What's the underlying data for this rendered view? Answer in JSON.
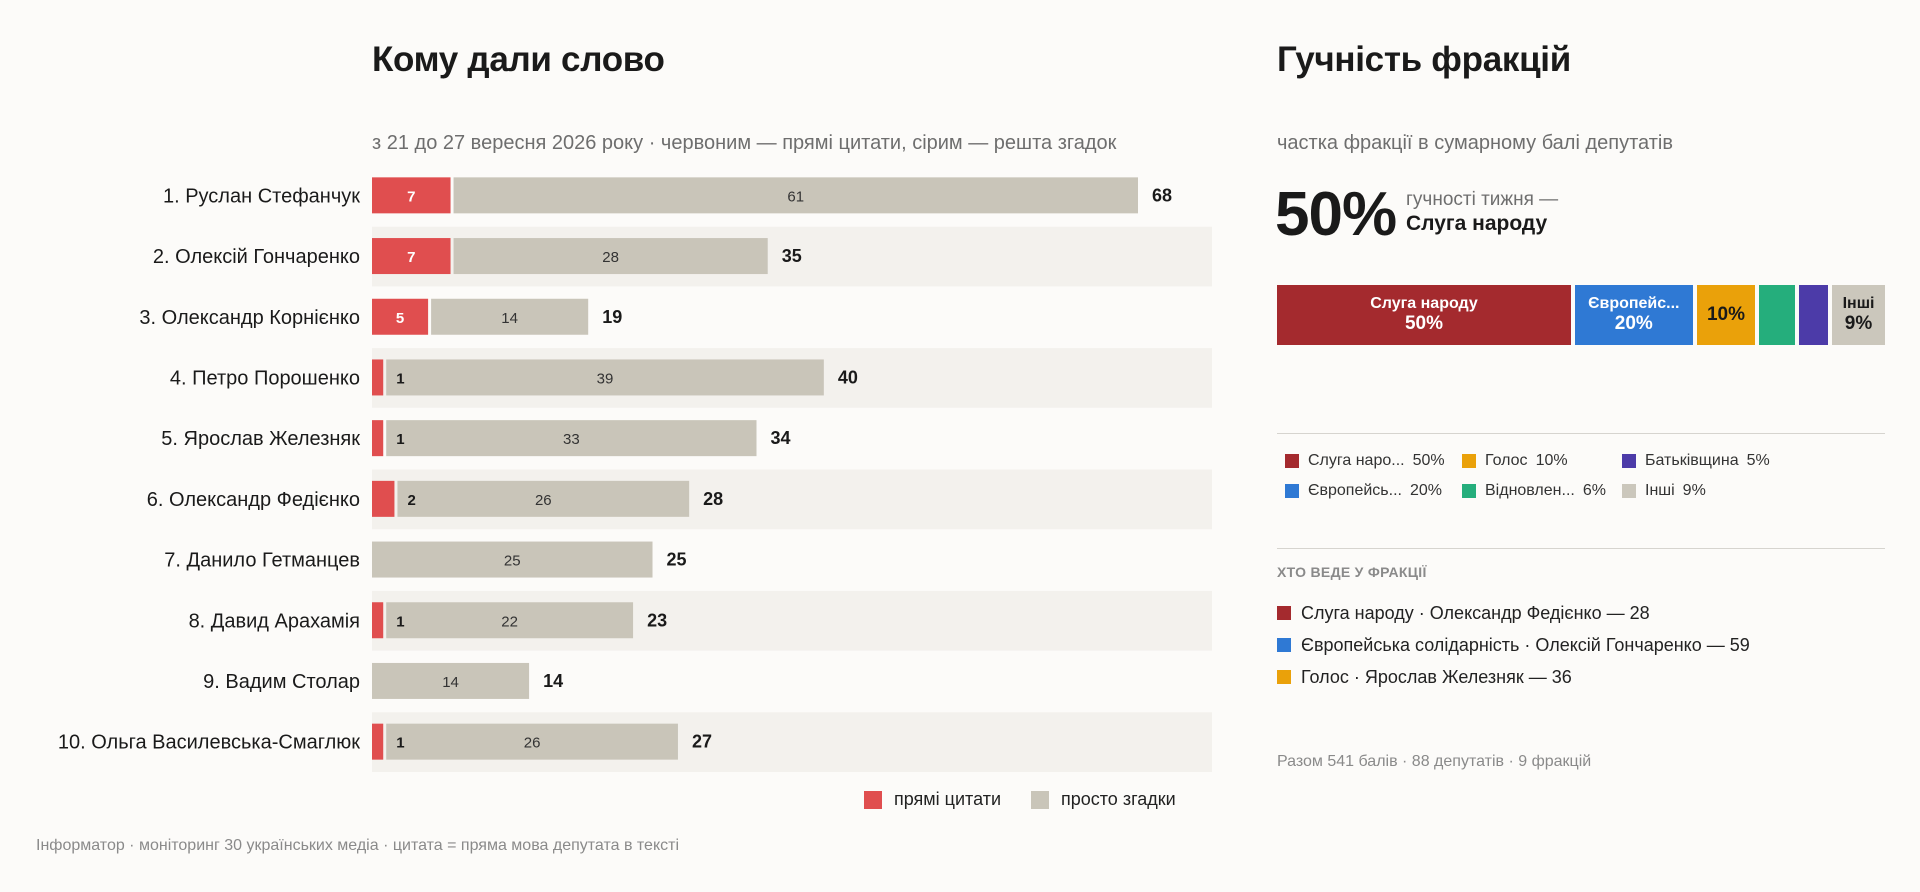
{
  "left": {
    "title": "Кому дали слово",
    "subtitle": "з 21 до 27 вересня 2026 року · червоним — прямі цитати, сірим — решта згадок",
    "legend": {
      "quotes": "прямі цитати",
      "mentions": "просто згадки"
    },
    "footnote": "Інформатор · моніторинг 30 українських медіа · цитата = пряма мова депутата в тексті"
  },
  "chart_data": [
    {
      "type": "bar",
      "orientation": "horizontal",
      "stacked": true,
      "title": "Кому дали слово",
      "subtitle": "з 21 до 27 вересня 2026 року · червоним — прямі цитати, сірим — решта згадок",
      "categories": [
        "1. Руслан Стефанчук",
        "2. Олексій Гончаренко",
        "3. Олександр Корнієнко",
        "4. Петро Порошенко",
        "5. Ярослав Железняк",
        "6. Олександр Федієнко",
        "7. Данило Гетманцев",
        "8. Давид Арахамія",
        "9. Вадим Столар",
        "10. Ольга Василевська-Смаглюк"
      ],
      "series": [
        {
          "name": "прямі цитати",
          "color": "#e04e4f",
          "values": [
            7,
            7,
            5,
            1,
            1,
            2,
            0,
            1,
            0,
            1
          ]
        },
        {
          "name": "просто згадки",
          "color": "#c9c5b9",
          "values": [
            61,
            28,
            14,
            39,
            33,
            26,
            25,
            22,
            14,
            26
          ]
        }
      ],
      "totals": [
        68,
        35,
        19,
        40,
        34,
        28,
        25,
        23,
        14,
        27
      ],
      "xlim": [
        0,
        68
      ],
      "legend_position": "bottom-right"
    },
    {
      "type": "bar",
      "orientation": "horizontal",
      "stacked": true,
      "normalized": true,
      "title": "Гучність фракцій",
      "subtitle": "частка фракції в сумарному балі депутатів",
      "categories": [
        "Слуга народу",
        "Європейська солідарність",
        "Голос",
        "Відновлення",
        "Батьківщина",
        "Інші"
      ],
      "values": [
        50,
        20,
        10,
        6,
        5,
        9
      ],
      "unit": "%",
      "colors": [
        "#a42a2e",
        "#2f79d4",
        "#eaa10a",
        "#25ae7c",
        "#4c3ba8",
        "#cbc7bc"
      ],
      "legend_position": "bottom"
    }
  ],
  "right": {
    "title": "Гучність фракцій",
    "subtitle": "частка фракції в сумарному балі депутатів",
    "headline_pct": "50%",
    "headline_caption": "гучності тижня —",
    "headline_name": "Слуга народу",
    "stack_segments": [
      {
        "name": "Слуга народу",
        "pct": "50%",
        "value": 50,
        "color": "#a42a2e",
        "text_color": "#ffffff"
      },
      {
        "name": "Європейс...",
        "pct": "20%",
        "value": 20,
        "color": "#2f79d4",
        "text_color": "#ffffff"
      },
      {
        "name": "",
        "pct": "10%",
        "value": 10,
        "color": "#eaa10a",
        "text_color": "#1a1a1a"
      },
      {
        "name": "",
        "pct": "",
        "value": 6,
        "color": "#25ae7c",
        "text_color": "#ffffff"
      },
      {
        "name": "",
        "pct": "",
        "value": 5,
        "color": "#4c3ba8",
        "text_color": "#ffffff"
      },
      {
        "name": "Інші",
        "pct": "9%",
        "value": 9,
        "color": "#cbc7bc",
        "text_color": "#1a1a1a"
      }
    ],
    "legend": [
      {
        "name": "Слуга наро...",
        "pct": "50%",
        "color": "#a42a2e"
      },
      {
        "name": "Голос",
        "pct": "10%",
        "color": "#eaa10a"
      },
      {
        "name": "Батьківщина",
        "pct": "5%",
        "color": "#4c3ba8"
      },
      {
        "name": "Європейсь...",
        "pct": "20%",
        "color": "#2f79d4"
      },
      {
        "name": "Відновлен...",
        "pct": "6%",
        "color": "#25ae7c"
      },
      {
        "name": "Інші",
        "pct": "9%",
        "color": "#cbc7bc"
      }
    ],
    "leaders_heading": "ХТО ВЕДЕ У ФРАКЦІЇ",
    "leaders": [
      {
        "text": "Слуга народу · Олександр Федієнко — 28",
        "color": "#a42a2e"
      },
      {
        "text": "Європейська солідарність · Олексій Гончаренко — 59",
        "color": "#2f79d4"
      },
      {
        "text": "Голос · Ярослав Железняк — 36",
        "color": "#eaa10a"
      }
    ],
    "totals_note": "Разом 541 балів · 88 депутатів · 9 фракцій"
  }
}
